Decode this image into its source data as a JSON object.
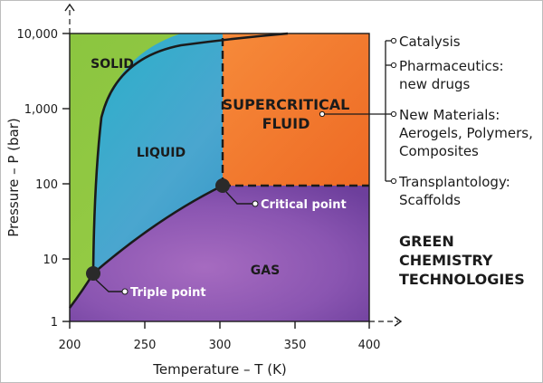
{
  "regions": {
    "solid": "SOLID",
    "liquid": "LIQUID",
    "gas": "GAS",
    "supercritical_line1": "SUPERCRITICAL",
    "supercritical_line2": "FLUID"
  },
  "points": {
    "critical": "Critical point",
    "triple": "Triple point"
  },
  "axes": {
    "y_label": "Pressure – P (bar)",
    "x_label": "Temperature – T (K)",
    "y_ticks": [
      "10,000",
      "1,000",
      "100",
      "10",
      "1"
    ],
    "x_ticks": [
      "200",
      "250",
      "300",
      "350",
      "400"
    ]
  },
  "applications": [
    {
      "lines": [
        "Catalysis"
      ]
    },
    {
      "lines": [
        "Pharmaceutics:",
        "new drugs"
      ]
    },
    {
      "lines": [
        "New Materials:",
        "Aerogels, Polymers,",
        "Composites"
      ]
    },
    {
      "lines": [
        "Transplantology:",
        "Scaffolds"
      ]
    }
  ],
  "footer": {
    "lines": [
      "GREEN",
      "CHEMISTRY",
      "TECHNOLOGIES"
    ]
  },
  "colors": {
    "solid": "#8dc63f",
    "liquid": "#3aa7c6",
    "gas": "#8e57b0",
    "supercritical": "#f37a2b",
    "outline": "#1b1b1b"
  }
}
